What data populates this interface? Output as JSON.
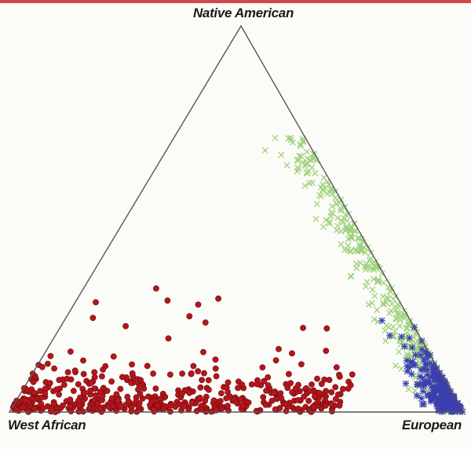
{
  "chart_data": {
    "type": "scatter",
    "subtype": "ternary",
    "title": "",
    "vertices": {
      "top": "Native American",
      "bottom_left": "West African",
      "bottom_right": "European"
    },
    "colors": {
      "frame": "#d64646",
      "triangle": "#555555",
      "series_red": "#b3161c",
      "series_green": "#9fd27e",
      "series_blue": "#3b3fb0"
    },
    "series": [
      {
        "marker": "circle",
        "color": "#b3161c",
        "count": 480,
        "coordinate_order": [
          "West African",
          "European",
          "Native American"
        ],
        "center": [
          0.62,
          0.28,
          0.1
        ],
        "spread": {
          "european": [
            0.0,
            0.72
          ],
          "native_american": [
            0.0,
            0.32
          ]
        },
        "sample_points": [
          [
            0.95,
            0.02,
            0.03
          ],
          [
            0.81,
            0.14,
            0.05
          ],
          [
            0.68,
            0.22,
            0.1
          ],
          [
            0.55,
            0.35,
            0.1
          ],
          [
            0.4,
            0.52,
            0.08
          ],
          [
            0.28,
            0.7,
            0.02
          ],
          [
            0.52,
            0.16,
            0.32
          ],
          [
            0.74,
            0.15,
            0.11
          ]
        ]
      },
      {
        "marker": "x",
        "color": "#9fd27e",
        "count": 380,
        "coordinate_order": [
          "West African",
          "European",
          "Native American"
        ],
        "center": [
          0.04,
          0.67,
          0.29
        ],
        "spread": {
          "native_american": [
            0.04,
            0.72
          ],
          "west_african": [
            0.0,
            0.12
          ]
        },
        "sample_points": [
          [
            0.01,
            0.29,
            0.7
          ],
          [
            0.02,
            0.4,
            0.58
          ],
          [
            0.03,
            0.55,
            0.42
          ],
          [
            0.02,
            0.7,
            0.28
          ],
          [
            0.05,
            0.8,
            0.15
          ],
          [
            0.09,
            0.79,
            0.12
          ],
          [
            0.01,
            0.88,
            0.11
          ]
        ]
      },
      {
        "marker": "asterisk",
        "color": "#3b3fb0",
        "count": 240,
        "coordinate_order": [
          "West African",
          "European",
          "Native American"
        ],
        "center": [
          0.02,
          0.93,
          0.05
        ],
        "spread": {
          "native_american": [
            0.0,
            0.24
          ],
          "west_african": [
            0.0,
            0.1
          ]
        },
        "sample_points": [
          [
            0.0,
            0.99,
            0.01
          ],
          [
            0.02,
            0.93,
            0.05
          ],
          [
            0.05,
            0.88,
            0.07
          ],
          [
            0.01,
            0.85,
            0.14
          ],
          [
            0.08,
            0.9,
            0.02
          ],
          [
            0.0,
            0.78,
            0.22
          ]
        ]
      }
    ]
  }
}
